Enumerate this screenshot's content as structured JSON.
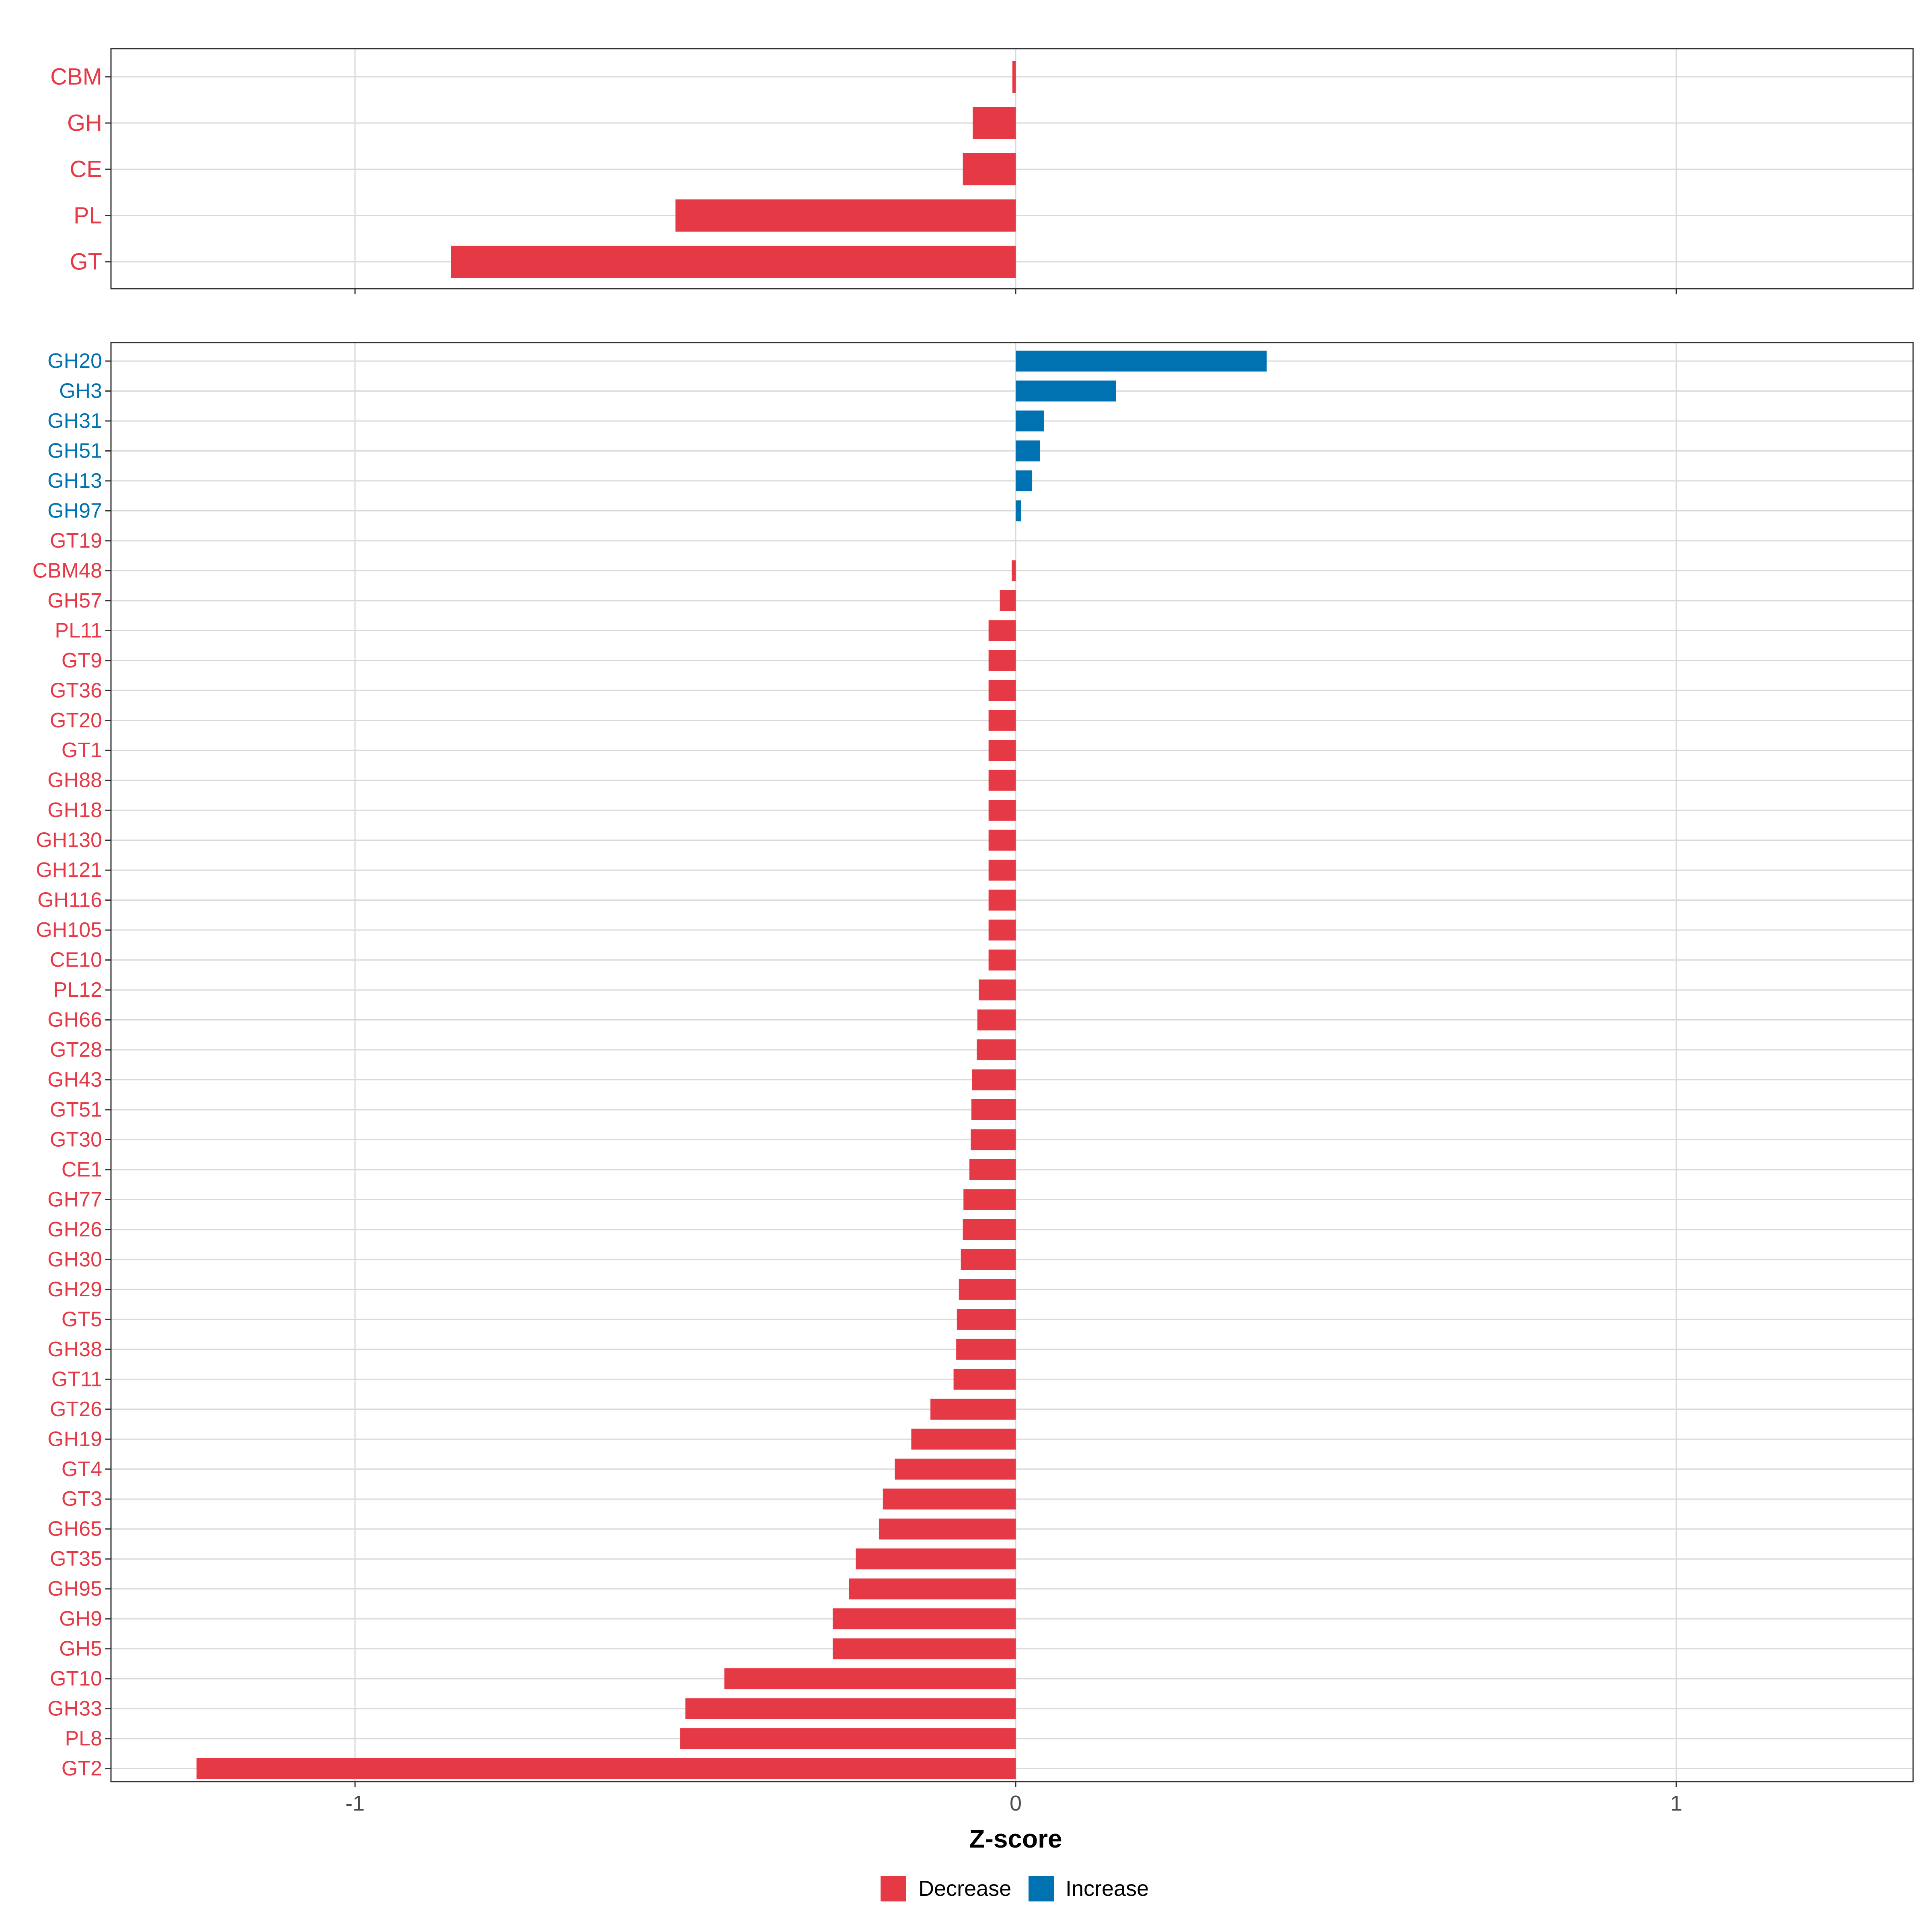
{
  "colors": {
    "decrease": "#E63946",
    "increase": "#0072B2",
    "grid": "#D9D9D9",
    "panel_border": "#333333",
    "axis_text": "#4D4D4D",
    "title_text": "#000000"
  },
  "chart_data": [
    {
      "type": "bar",
      "orientation": "horizontal",
      "panel": "top",
      "categories": [
        "CBM",
        "GH",
        "CE",
        "PL",
        "GT"
      ],
      "values": [
        -0.005,
        -0.065,
        -0.08,
        -0.515,
        -0.855
      ],
      "directions": [
        "Decrease",
        "Decrease",
        "Decrease",
        "Decrease",
        "Decrease"
      ],
      "xlim": [
        -1.365,
        1.365
      ],
      "xticks": [
        -1,
        0,
        1
      ],
      "grid": true
    },
    {
      "type": "bar",
      "orientation": "horizontal",
      "panel": "bottom",
      "categories": [
        "GH20",
        "GH3",
        "GH31",
        "GH51",
        "GH13",
        "GH97",
        "GT19",
        "CBM48",
        "GH57",
        "PL11",
        "GT9",
        "GT36",
        "GT20",
        "GT1",
        "GH88",
        "GH18",
        "GH130",
        "GH121",
        "GH116",
        "GH105",
        "CE10",
        "PL12",
        "GH66",
        "GT28",
        "GH43",
        "GT51",
        "GT30",
        "CE1",
        "GH77",
        "GH26",
        "GH30",
        "GH29",
        "GT5",
        "GH38",
        "GT11",
        "GT26",
        "GH19",
        "GT4",
        "GT3",
        "GH65",
        "GT35",
        "GH95",
        "GH9",
        "GH5",
        "GT10",
        "GH33",
        "PL8",
        "GT2"
      ],
      "values": [
        0.38,
        0.152,
        0.043,
        0.037,
        0.025,
        0.008,
        0.0,
        -0.006,
        -0.024,
        -0.041,
        -0.041,
        -0.041,
        -0.041,
        -0.041,
        -0.041,
        -0.041,
        -0.041,
        -0.041,
        -0.041,
        -0.041,
        -0.041,
        -0.056,
        -0.058,
        -0.059,
        -0.066,
        -0.067,
        -0.068,
        -0.07,
        -0.079,
        -0.08,
        -0.083,
        -0.086,
        -0.089,
        -0.09,
        -0.094,
        -0.129,
        -0.158,
        -0.183,
        -0.201,
        -0.207,
        -0.242,
        -0.252,
        -0.277,
        -0.277,
        -0.441,
        -0.5,
        -0.508,
        -1.24
      ],
      "directions": [
        "Increase",
        "Increase",
        "Increase",
        "Increase",
        "Increase",
        "Increase",
        "Decrease",
        "Decrease",
        "Decrease",
        "Decrease",
        "Decrease",
        "Decrease",
        "Decrease",
        "Decrease",
        "Decrease",
        "Decrease",
        "Decrease",
        "Decrease",
        "Decrease",
        "Decrease",
        "Decrease",
        "Decrease",
        "Decrease",
        "Decrease",
        "Decrease",
        "Decrease",
        "Decrease",
        "Decrease",
        "Decrease",
        "Decrease",
        "Decrease",
        "Decrease",
        "Decrease",
        "Decrease",
        "Decrease",
        "Decrease",
        "Decrease",
        "Decrease",
        "Decrease",
        "Decrease",
        "Decrease",
        "Decrease",
        "Decrease",
        "Decrease",
        "Decrease",
        "Decrease",
        "Decrease",
        "Decrease"
      ],
      "xlim": [
        -1.365,
        1.365
      ],
      "xticks": [
        -1,
        0,
        1
      ],
      "xticklabels": [
        "-1",
        "0",
        "1"
      ],
      "xlabel": "Z-score",
      "grid": true
    }
  ],
  "legend": {
    "placement": "bottom",
    "items": [
      {
        "label": "Decrease",
        "key": "decrease"
      },
      {
        "label": "Increase",
        "key": "increase"
      }
    ]
  }
}
